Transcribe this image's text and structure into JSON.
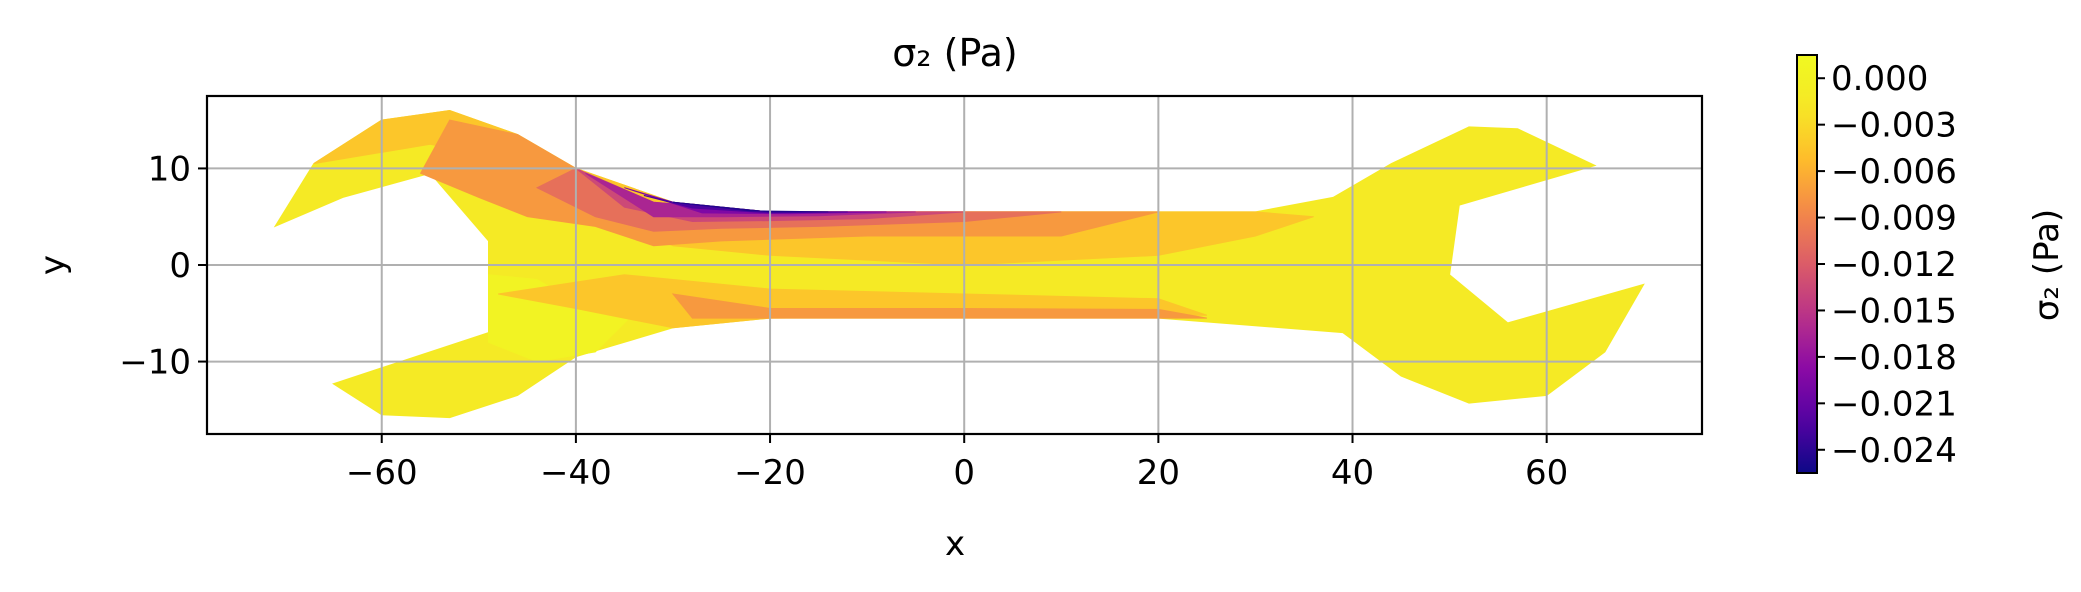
{
  "chart_data": {
    "type": "contour",
    "title": "σ₂ (Pa)",
    "xlabel": "x",
    "ylabel": "y",
    "xlim": [
      -78,
      76
    ],
    "ylim": [
      -17.5,
      17.5
    ],
    "xticks": [
      -60,
      -40,
      -20,
      0,
      20,
      40,
      60
    ],
    "xtick_labels": [
      "−60",
      "−40",
      "−20",
      "0",
      "20",
      "40",
      "60"
    ],
    "yticks": [
      -10,
      0,
      10
    ],
    "ytick_labels": [
      "−10",
      "0",
      "10"
    ],
    "grid": true,
    "colormap": "plasma",
    "colorbar": {
      "label": "σ₂ (Pa)",
      "range": [
        -0.0255,
        0.0015
      ],
      "ticks": [
        0.0,
        -0.003,
        -0.006,
        -0.009,
        -0.012,
        -0.015,
        -0.018,
        -0.021,
        -0.024
      ],
      "tick_labels": [
        "0.000",
        "−0.003",
        "−0.006",
        "−0.009",
        "−0.012",
        "−0.015",
        "−0.018",
        "−0.021",
        "−0.024"
      ]
    },
    "regions": [
      {
        "value": -0.0015,
        "points": [
          [
            -71,
            4
          ],
          [
            -67,
            10.5
          ],
          [
            -60,
            15
          ],
          [
            -53,
            16
          ],
          [
            -46,
            13.5
          ],
          [
            -40,
            10
          ],
          [
            -30,
            6.5
          ],
          [
            -20,
            5.5
          ],
          [
            30,
            5.5
          ],
          [
            38,
            7
          ],
          [
            44,
            10.5
          ],
          [
            52,
            14.3
          ],
          [
            57,
            14.1
          ],
          [
            65,
            10.3
          ],
          [
            51,
            6.2
          ],
          [
            50,
            -1
          ],
          [
            56,
            -6
          ],
          [
            70,
            -2
          ],
          [
            66,
            -9
          ],
          [
            60,
            -13.5
          ],
          [
            52,
            -14.3
          ],
          [
            45,
            -11.5
          ],
          [
            39,
            -7
          ],
          [
            20,
            -5.5
          ],
          [
            -20,
            -5.5
          ],
          [
            -30,
            -6.5
          ],
          [
            -40,
            -9.5
          ],
          [
            -46,
            -13.5
          ],
          [
            -53,
            -15.8
          ],
          [
            -60,
            -15.5
          ],
          [
            -65,
            -12.3
          ],
          [
            -49,
            -7
          ],
          [
            -49,
            2.5
          ],
          [
            -55,
            9.5
          ],
          [
            -64,
            7
          ]
        ]
      },
      {
        "value": 0.0003,
        "points": [
          [
            -49,
            -1
          ],
          [
            -44,
            -1.5
          ],
          [
            -40,
            -4
          ],
          [
            -34,
            -5
          ],
          [
            -38,
            -9
          ],
          [
            -44,
            -10
          ],
          [
            -49,
            -8
          ]
        ]
      },
      {
        "value": -0.0045,
        "points": [
          [
            -67,
            10.5
          ],
          [
            -60,
            15
          ],
          [
            -53,
            16
          ],
          [
            -46,
            13.5
          ],
          [
            -40,
            10
          ],
          [
            -35,
            4
          ],
          [
            -30,
            2
          ],
          [
            -20,
            1
          ],
          [
            0,
            0
          ],
          [
            20,
            1
          ],
          [
            30,
            3
          ],
          [
            36,
            5
          ],
          [
            30,
            5.5
          ],
          [
            -20,
            5.5
          ],
          [
            -30,
            6.5
          ],
          [
            -40,
            10
          ],
          [
            -48,
            11
          ],
          [
            -55,
            12.5
          ]
        ]
      },
      {
        "value": -0.0045,
        "points": [
          [
            -48,
            -3
          ],
          [
            -35,
            -1
          ],
          [
            -20,
            -2.5
          ],
          [
            0,
            -3
          ],
          [
            20,
            -3.5
          ],
          [
            25,
            -5.2
          ],
          [
            -20,
            -5.5
          ],
          [
            -30,
            -6.5
          ],
          [
            -40,
            -4.5
          ]
        ]
      },
      {
        "value": -0.0075,
        "points": [
          [
            -56,
            9.5
          ],
          [
            -53,
            15
          ],
          [
            -46,
            13.5
          ],
          [
            -40,
            10
          ],
          [
            -32,
            6.2
          ],
          [
            -20,
            5.5
          ],
          [
            20,
            5.5
          ],
          [
            10,
            3
          ],
          [
            -10,
            3
          ],
          [
            -25,
            2.5
          ],
          [
            -32,
            2
          ],
          [
            -38,
            4
          ],
          [
            -45,
            5
          ],
          [
            -50,
            7
          ]
        ]
      },
      {
        "value": -0.0075,
        "points": [
          [
            -30,
            -3
          ],
          [
            -20,
            -4.5
          ],
          [
            0,
            -4.5
          ],
          [
            20,
            -4.6
          ],
          [
            25,
            -5.5
          ],
          [
            -20,
            -5.5
          ],
          [
            -28,
            -5.5
          ]
        ]
      },
      {
        "value": -0.0105,
        "points": [
          [
            -44,
            8
          ],
          [
            -40,
            10
          ],
          [
            -32,
            6.2
          ],
          [
            -20,
            5.5
          ],
          [
            10,
            5.5
          ],
          [
            0,
            4.5
          ],
          [
            -15,
            4
          ],
          [
            -25,
            3.8
          ],
          [
            -32,
            3.5
          ],
          [
            -38,
            5
          ]
        ]
      },
      {
        "value": -0.0135,
        "points": [
          [
            -40,
            10
          ],
          [
            -32,
            6.5
          ],
          [
            -20,
            5.5
          ],
          [
            0,
            5.5
          ],
          [
            -10,
            4.8
          ],
          [
            -20,
            4.6
          ],
          [
            -28,
            4.5
          ],
          [
            -35,
            6
          ]
        ]
      },
      {
        "value": -0.0165,
        "points": [
          [
            -39,
            9.5
          ],
          [
            -32,
            6.5
          ],
          [
            -20,
            5.5
          ],
          [
            -5,
            5.5
          ],
          [
            -15,
            5.1
          ],
          [
            -25,
            5
          ],
          [
            -32,
            5
          ]
        ]
      },
      {
        "value": -0.0195,
        "points": [
          [
            -35,
            8
          ],
          [
            -30,
            6.5
          ],
          [
            -20,
            5.5
          ],
          [
            -8,
            5.5
          ],
          [
            -18,
            5.3
          ],
          [
            -27,
            5.4
          ]
        ]
      },
      {
        "value": -0.0225,
        "points": [
          [
            -33,
            7.2
          ],
          [
            -30,
            6.5
          ],
          [
            -20,
            5.5
          ],
          [
            -12,
            5.5
          ],
          [
            -20,
            5.4
          ],
          [
            -28,
            5.9
          ]
        ]
      },
      {
        "value": -0.0245,
        "points": [
          [
            -30,
            6.5
          ],
          [
            -20,
            5.5
          ],
          [
            -14,
            5.5
          ],
          [
            -22,
            5.6
          ]
        ]
      }
    ]
  }
}
